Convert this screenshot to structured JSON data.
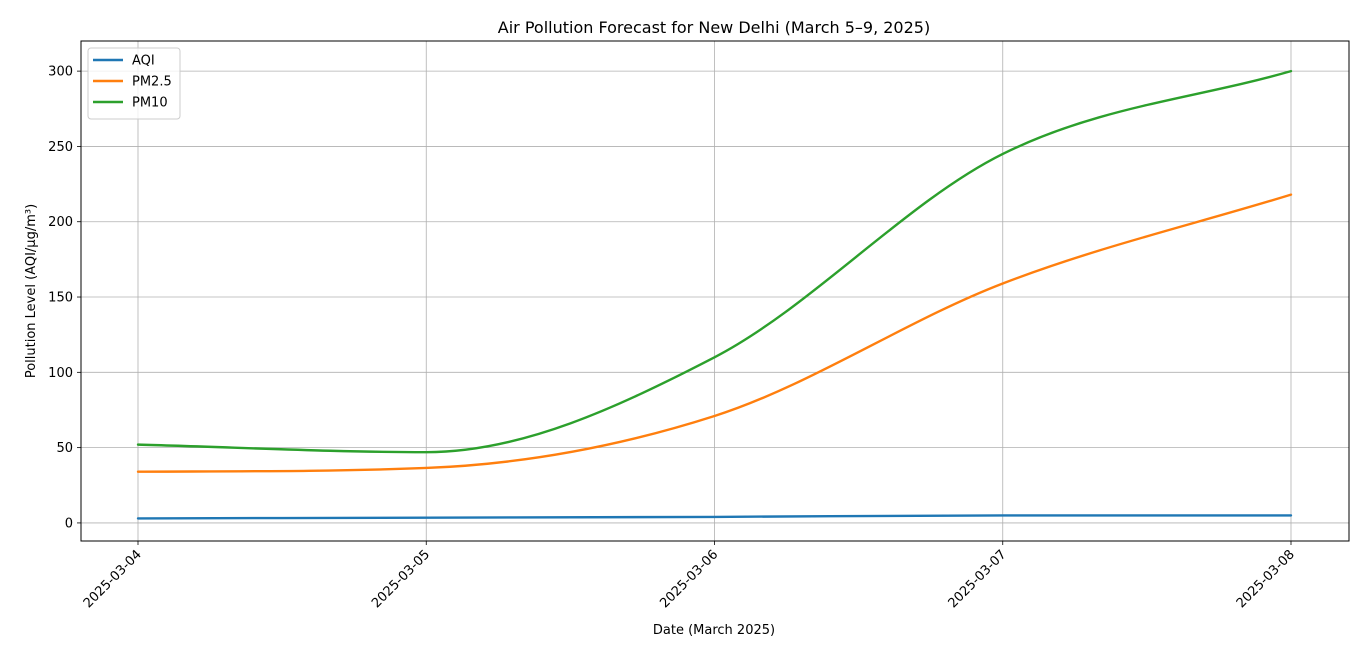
{
  "chart_data": {
    "type": "line",
    "title": "Air Pollution Forecast for New Delhi (March 5–9, 2025)",
    "xlabel": "Date (March 2025)",
    "ylabel": "Pollution Level (AQI/µg/m³)",
    "x": [
      "2025-03-04",
      "2025-03-05",
      "2025-03-06",
      "2025-03-07",
      "2025-03-08"
    ],
    "x_tick_labels": [
      "2025-03-04",
      "2025-03-05",
      "2025-03-06",
      "2025-03-07",
      "2025-03-08"
    ],
    "y_ticks": [
      0,
      50,
      100,
      150,
      200,
      250,
      300
    ],
    "ylim": [
      -12,
      320
    ],
    "grid": true,
    "legend_position": "upper-left",
    "series": [
      {
        "name": "AQI",
        "color": "#1f77b4",
        "values": [
          3,
          3.5,
          4,
          5,
          5
        ]
      },
      {
        "name": "PM2.5",
        "color": "#ff7f0e",
        "values": [
          34,
          36.5,
          71,
          159,
          218
        ]
      },
      {
        "name": "PM10",
        "color": "#2ca02c",
        "values": [
          52,
          47,
          110,
          245,
          300
        ]
      }
    ]
  }
}
